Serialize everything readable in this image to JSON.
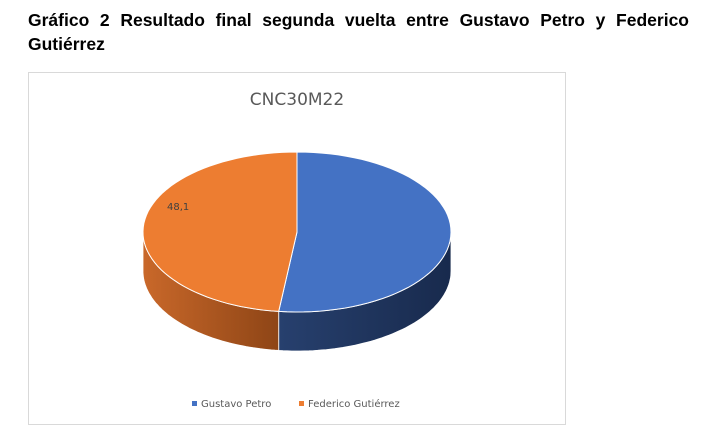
{
  "caption": "Gráfico 2 Resultado final segunda vuelta entre Gustavo Petro y Federico Gutiérrez",
  "chart_data": {
    "type": "pie",
    "style": "3d",
    "title": "CNC30M22",
    "categories": [
      "Gustavo Petro",
      "Federico Gutiérrez"
    ],
    "values": [
      51.9,
      48.1
    ],
    "data_labels": [
      "",
      "48,1"
    ],
    "colors": [
      "#4472c4",
      "#ed7d31"
    ],
    "legend_position": "bottom"
  }
}
